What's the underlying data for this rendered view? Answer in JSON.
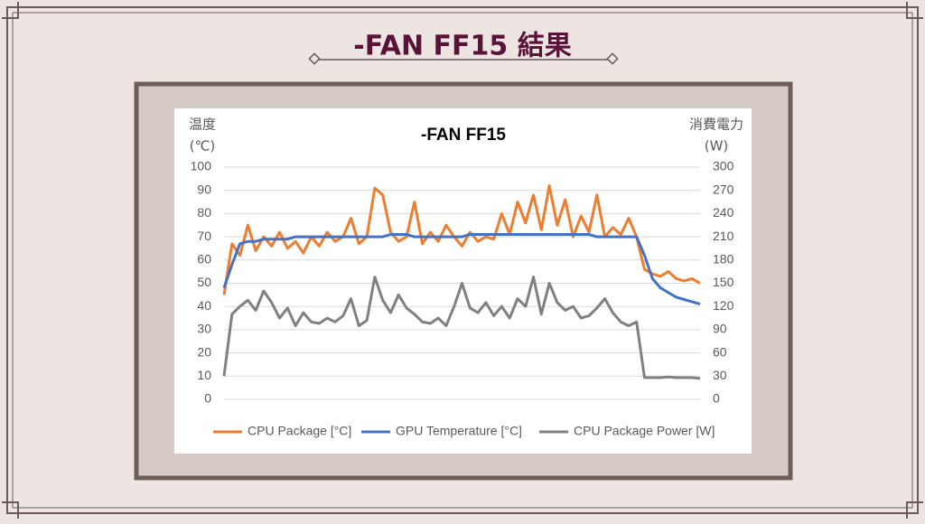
{
  "slide_title": "-FAN FF15 結果",
  "chart_data": {
    "type": "line",
    "title": "-FAN FF15",
    "ylabel": "温度",
    "yunit": "(℃)",
    "y2label": "消費電力",
    "y2unit": "(W)",
    "ylim": [
      0,
      100
    ],
    "yticks": [
      0,
      10,
      20,
      30,
      40,
      50,
      60,
      70,
      80,
      90,
      100
    ],
    "y2lim": [
      0,
      300
    ],
    "y2ticks": [
      0,
      30,
      60,
      90,
      120,
      150,
      180,
      210,
      240,
      270,
      300
    ],
    "grid": true,
    "legend": "bottom",
    "series": [
      {
        "name": "CPU Package [°C]",
        "color": "#ed7d31",
        "values": [
          45,
          67,
          62,
          75,
          64,
          70,
          66,
          72,
          65,
          68,
          63,
          70,
          66,
          72,
          68,
          70,
          78,
          67,
          70,
          91,
          88,
          72,
          68,
          70,
          85,
          67,
          72,
          68,
          75,
          70,
          66,
          72,
          68,
          70,
          69,
          80,
          71,
          85,
          76,
          88,
          73,
          92,
          75,
          86,
          70,
          79,
          72,
          88,
          70,
          74,
          71,
          78,
          70,
          56,
          54,
          53,
          55,
          52,
          51,
          52,
          50
        ]
      },
      {
        "name": "GPU Temperature [°C]",
        "color": "#4472c4",
        "values": [
          48,
          58,
          67,
          68,
          68,
          69,
          69,
          69,
          69,
          70,
          70,
          70,
          70,
          70,
          70,
          70,
          70,
          70,
          70,
          70,
          70,
          71,
          71,
          71,
          70,
          70,
          70,
          70,
          70,
          70,
          70,
          71,
          71,
          71,
          71,
          71,
          71,
          71,
          71,
          71,
          71,
          71,
          71,
          71,
          71,
          71,
          71,
          70,
          70,
          70,
          70,
          70,
          70,
          62,
          52,
          48,
          46,
          44,
          43,
          42,
          41
        ]
      },
      {
        "name": "CPU Package Power [W]",
        "color": "#808080",
        "axis": "y2",
        "values": [
          30,
          110,
          120,
          128,
          115,
          140,
          125,
          105,
          118,
          95,
          112,
          100,
          98,
          105,
          100,
          108,
          130,
          95,
          102,
          158,
          128,
          112,
          135,
          118,
          110,
          100,
          98,
          105,
          95,
          120,
          150,
          118,
          112,
          125,
          108,
          120,
          105,
          130,
          120,
          158,
          110,
          150,
          125,
          115,
          120,
          105,
          108,
          118,
          130,
          112,
          100,
          95,
          100,
          28,
          28,
          28,
          29,
          28,
          28,
          28,
          27
        ]
      }
    ]
  }
}
